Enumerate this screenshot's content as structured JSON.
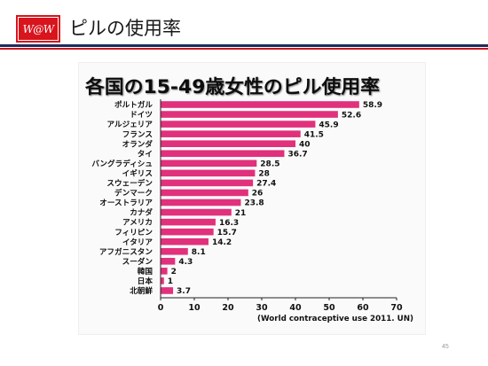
{
  "slide": {
    "logo_text": "W@W",
    "title": "ピルの使用率",
    "page_number": "45",
    "colors": {
      "logo_red": "#d8141c",
      "header_rule_navy": "#1e2b5c",
      "header_rule_red": "#c8161e"
    }
  },
  "chart_data": {
    "type": "bar",
    "orientation": "horizontal",
    "title": "各国の15-49歳女性のピル使用率",
    "categories": [
      "ポルトガル",
      "ドイツ",
      "アルジェリア",
      "フランス",
      "オランダ",
      "タイ",
      "バングラディシュ",
      "イギリス",
      "スウェーデン",
      "デンマーク",
      "オーストラリア",
      "カナダ",
      "アメリカ",
      "フィリピン",
      "イタリア",
      "アフガニスタン",
      "スーダン",
      "韓国",
      "日本",
      "北朝鮮"
    ],
    "values": [
      58.9,
      52.6,
      45.9,
      41.5,
      40,
      36.7,
      28.5,
      28,
      27.4,
      26,
      23.8,
      21,
      16.3,
      15.7,
      14.2,
      8.1,
      4.3,
      2,
      1,
      3.7
    ],
    "xlim": [
      0,
      70
    ],
    "xticks": [
      0,
      10,
      20,
      30,
      40,
      50,
      60,
      70
    ],
    "data_labels": true,
    "grid": false,
    "legend": "none",
    "bar_color": "#e1307c",
    "source": "(World contraceptive use 2011. UN)"
  }
}
